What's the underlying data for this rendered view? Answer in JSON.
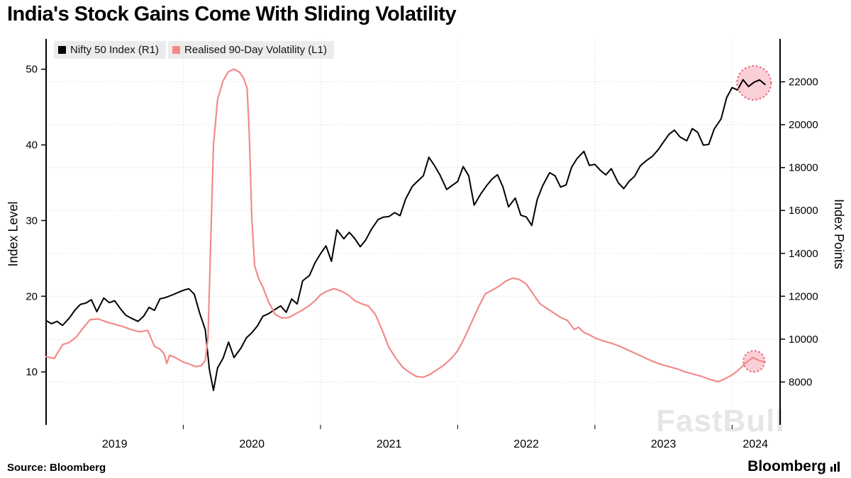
{
  "title": "India's Stock Gains Come With Sliding Volatility",
  "source": "Source:  Bloomberg",
  "brand": "Bloomberg",
  "watermark": "FastBull",
  "legend": [
    {
      "label": "Nifty 50 Index (R1)",
      "color": "#000000"
    },
    {
      "label": "Realised 90-Day Volatility (L1)",
      "color": "#f28a8a"
    }
  ],
  "colors": {
    "nifty": "#000000",
    "volatility": "#f28a8a",
    "highlight_fill": "#f5a7b4",
    "highlight_stroke": "#e8637a",
    "grid": "#d4d4d4",
    "axis": "#000000",
    "legend_bg": "#ececec",
    "watermark": "#c8c8c8"
  },
  "chart_data": {
    "type": "line",
    "title": "India's Stock Gains Come With Sliding Volatility",
    "x_axis": {
      "range": [
        2019.0,
        2024.35
      ],
      "ticks": [
        2019.5,
        2020.5,
        2021.5,
        2022.5,
        2023.5,
        2024.17
      ],
      "tick_labels": [
        "2019",
        "2020",
        "2021",
        "2022",
        "2023",
        "2024"
      ],
      "gridlines": [
        2020,
        2021,
        2022,
        2023,
        2024
      ]
    },
    "left_axis": {
      "label": "Index Level",
      "ticks": [
        10,
        20,
        30,
        40,
        50
      ],
      "range": [
        3,
        54
      ]
    },
    "right_axis": {
      "label": "Index Points",
      "ticks": [
        8000,
        10000,
        12000,
        14000,
        16000,
        18000,
        20000,
        22000
      ],
      "range": [
        6000,
        24000
      ]
    },
    "series": [
      {
        "name": "Nifty 50 Index (R1)",
        "axis": "right",
        "color": "#000000",
        "width": 2,
        "x": [
          2019.0,
          2019.04,
          2019.08,
          2019.12,
          2019.17,
          2019.21,
          2019.25,
          2019.29,
          2019.33,
          2019.37,
          2019.42,
          2019.46,
          2019.5,
          2019.54,
          2019.58,
          2019.62,
          2019.67,
          2019.71,
          2019.75,
          2019.79,
          2019.83,
          2019.87,
          2019.92,
          2019.96,
          2020.0,
          2020.04,
          2020.08,
          2020.12,
          2020.16,
          2020.19,
          2020.22,
          2020.25,
          2020.29,
          2020.33,
          2020.37,
          2020.42,
          2020.46,
          2020.5,
          2020.54,
          2020.58,
          2020.62,
          2020.67,
          2020.71,
          2020.75,
          2020.79,
          2020.83,
          2020.87,
          2020.92,
          2020.96,
          2021.0,
          2021.04,
          2021.08,
          2021.12,
          2021.17,
          2021.21,
          2021.25,
          2021.29,
          2021.33,
          2021.37,
          2021.42,
          2021.46,
          2021.5,
          2021.54,
          2021.58,
          2021.62,
          2021.67,
          2021.71,
          2021.75,
          2021.79,
          2021.83,
          2021.87,
          2021.92,
          2021.96,
          2022.0,
          2022.04,
          2022.08,
          2022.12,
          2022.17,
          2022.21,
          2022.25,
          2022.29,
          2022.33,
          2022.37,
          2022.42,
          2022.46,
          2022.5,
          2022.54,
          2022.58,
          2022.62,
          2022.67,
          2022.71,
          2022.75,
          2022.79,
          2022.83,
          2022.87,
          2022.92,
          2022.96,
          2023.0,
          2023.04,
          2023.08,
          2023.12,
          2023.17,
          2023.21,
          2023.25,
          2023.29,
          2023.33,
          2023.37,
          2023.42,
          2023.46,
          2023.5,
          2023.54,
          2023.58,
          2023.62,
          2023.67,
          2023.71,
          2023.75,
          2023.79,
          2023.83,
          2023.87,
          2023.92,
          2023.96,
          2024.0,
          2024.04,
          2024.08,
          2024.12,
          2024.16,
          2024.2,
          2024.24
        ],
        "values": [
          10860,
          10720,
          10830,
          10640,
          10990,
          11350,
          11620,
          11680,
          11840,
          11280,
          11920,
          11700,
          11790,
          11430,
          11120,
          10980,
          10830,
          11060,
          11480,
          11340,
          11880,
          11940,
          12060,
          12170,
          12280,
          12350,
          12100,
          11200,
          10450,
          8600,
          7610,
          8660,
          9110,
          9860,
          9140,
          9580,
          10060,
          10300,
          10610,
          11070,
          11180,
          11390,
          11550,
          11250,
          11870,
          11640,
          12720,
          12970,
          13560,
          13980,
          14350,
          13630,
          15100,
          14680,
          14980,
          14690,
          14310,
          14630,
          15110,
          15580,
          15690,
          15720,
          15900,
          15760,
          16530,
          17130,
          17380,
          17620,
          18480,
          18100,
          17670,
          16980,
          17170,
          17350,
          18050,
          17620,
          16250,
          16790,
          17150,
          17460,
          17670,
          17100,
          16170,
          16580,
          15780,
          15700,
          15300,
          16520,
          17160,
          17760,
          17620,
          17090,
          17190,
          18010,
          18420,
          18760,
          18100,
          18150,
          17870,
          17660,
          17950,
          17300,
          17020,
          17360,
          17600,
          18070,
          18300,
          18530,
          18820,
          19190,
          19550,
          19750,
          19430,
          19250,
          19820,
          19640,
          19050,
          19080,
          19800,
          20270,
          21260,
          21730,
          21620,
          22100,
          21780,
          21980,
          22090,
          21880
        ]
      },
      {
        "name": "Realised 90-Day Volatility (L1)",
        "axis": "left",
        "color": "#f28a8a",
        "width": 2.2,
        "x": [
          2019.0,
          2019.06,
          2019.12,
          2019.17,
          2019.22,
          2019.27,
          2019.32,
          2019.38,
          2019.44,
          2019.5,
          2019.56,
          2019.62,
          2019.68,
          2019.74,
          2019.79,
          2019.83,
          2019.86,
          2019.88,
          2019.9,
          2019.94,
          2020.0,
          2020.05,
          2020.09,
          2020.13,
          2020.16,
          2020.18,
          2020.2,
          2020.22,
          2020.25,
          2020.29,
          2020.33,
          2020.37,
          2020.41,
          2020.44,
          2020.465,
          2020.48,
          2020.5,
          2020.52,
          2020.55,
          2020.58,
          2020.62,
          2020.67,
          2020.72,
          2020.77,
          2020.82,
          2020.87,
          2020.92,
          2020.96,
          2021.0,
          2021.05,
          2021.1,
          2021.15,
          2021.2,
          2021.25,
          2021.3,
          2021.35,
          2021.4,
          2021.45,
          2021.5,
          2021.55,
          2021.6,
          2021.65,
          2021.7,
          2021.75,
          2021.8,
          2021.85,
          2021.9,
          2021.96,
          2022.0,
          2022.05,
          2022.1,
          2022.15,
          2022.2,
          2022.25,
          2022.3,
          2022.35,
          2022.4,
          2022.45,
          2022.5,
          2022.55,
          2022.6,
          2022.65,
          2022.7,
          2022.75,
          2022.8,
          2022.85,
          2022.88,
          2022.92,
          2022.96,
          2023.0,
          2023.06,
          2023.12,
          2023.18,
          2023.24,
          2023.3,
          2023.36,
          2023.42,
          2023.48,
          2023.54,
          2023.6,
          2023.66,
          2023.72,
          2023.78,
          2023.84,
          2023.9,
          2023.96,
          2024.0,
          2024.05,
          2024.1,
          2024.15,
          2024.2,
          2024.24
        ],
        "values": [
          12.0,
          11.8,
          13.6,
          13.9,
          14.6,
          15.8,
          16.9,
          17.0,
          16.6,
          16.3,
          16.0,
          15.6,
          15.3,
          15.5,
          13.4,
          13.0,
          12.4,
          11.1,
          12.2,
          11.9,
          11.3,
          11.0,
          10.7,
          10.8,
          11.5,
          14.5,
          27.0,
          40.0,
          46.0,
          48.5,
          49.7,
          50.0,
          49.6,
          48.8,
          47.5,
          42.0,
          30.0,
          24.0,
          22.3,
          21.2,
          19.3,
          17.6,
          17.1,
          17.2,
          17.7,
          18.2,
          18.8,
          19.4,
          20.2,
          20.7,
          21.0,
          20.7,
          20.2,
          19.4,
          19.0,
          18.7,
          17.6,
          15.5,
          13.2,
          11.8,
          10.6,
          9.9,
          9.4,
          9.3,
          9.7,
          10.3,
          10.9,
          11.9,
          12.8,
          14.5,
          16.5,
          18.5,
          20.3,
          20.8,
          21.3,
          22.0,
          22.4,
          22.2,
          21.6,
          20.3,
          19.0,
          18.4,
          17.8,
          17.2,
          16.8,
          15.6,
          15.9,
          15.2,
          14.9,
          14.5,
          14.1,
          13.8,
          13.4,
          12.9,
          12.4,
          11.9,
          11.4,
          11.0,
          10.7,
          10.4,
          10.0,
          9.7,
          9.4,
          9.0,
          8.7,
          9.2,
          9.6,
          10.3,
          11.2,
          11.9,
          11.5,
          11.3
        ]
      }
    ],
    "annotations": [
      {
        "type": "circle",
        "series": "Nifty 50 Index (R1)",
        "axis": "right",
        "x": 2024.16,
        "value": 21950,
        "radius": 24
      },
      {
        "type": "circle",
        "series": "Realised 90-Day Volatility (L1)",
        "axis": "left",
        "x": 2024.16,
        "value": 11.4,
        "radius": 15
      }
    ]
  }
}
